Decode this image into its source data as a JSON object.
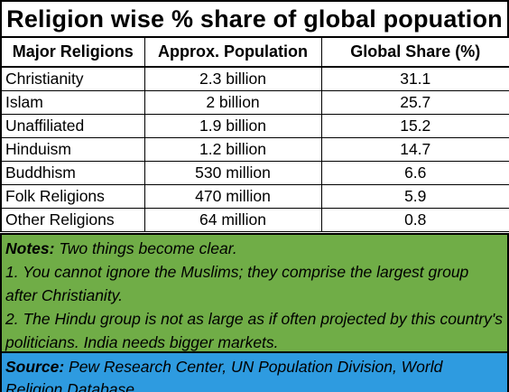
{
  "title": "Religion wise % share of global popuation",
  "columns": [
    "Major Religions",
    "Approx. Population",
    "Global Share (%)"
  ],
  "rows": [
    {
      "religion": "Christianity",
      "population": "2.3 billion",
      "share": "31.1"
    },
    {
      "religion": "Islam",
      "population": "2 billion",
      "share": "25.7"
    },
    {
      "religion": "Unaffiliated",
      "population": "1.9 billion",
      "share": "15.2"
    },
    {
      "religion": "Hinduism",
      "population": "1.2 billion",
      "share": "14.7"
    },
    {
      "religion": "Buddhism",
      "population": "530 million",
      "share": "6.6"
    },
    {
      "religion": "Folk Religions",
      "population": "470 million",
      "share": "5.9"
    },
    {
      "religion": "Other Religions",
      "population": "64 million",
      "share": "0.8"
    }
  ],
  "notes": {
    "label": "Notes:",
    "intro": " Two things become clear.",
    "point1": "1. You cannot ignore the Muslims; they comprise the largest group after Christianity.",
    "point2": "2. The Hindu group is not as large as if often projected by this country's  politicians. India needs bigger markets."
  },
  "source": {
    "label": "Source:",
    "text": " Pew Research Center, UN Population Division, World Religion Database"
  },
  "colors": {
    "notes_background": "#70ad47",
    "source_background": "#2e9be0"
  }
}
